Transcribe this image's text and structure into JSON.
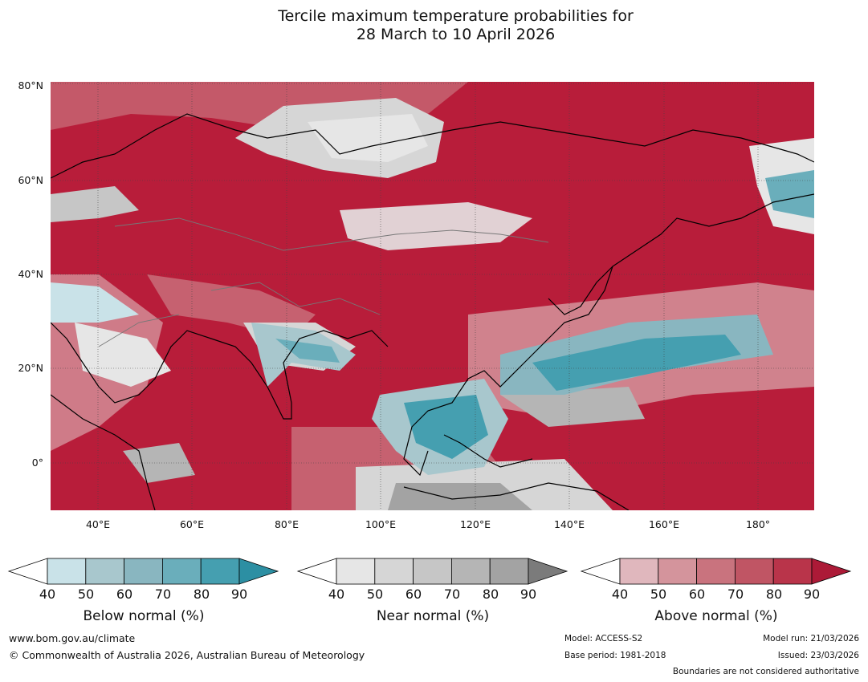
{
  "title": {
    "line1": "Tercile maximum temperature probabilities for",
    "line2": "28 March to 10 April 2026"
  },
  "map": {
    "lat_labels": [
      "80°N",
      "60°N",
      "40°N",
      "20°N",
      "0°"
    ],
    "lon_labels": [
      "40°E",
      "60°E",
      "80°E",
      "100°E",
      "120°E",
      "140°E",
      "160°E",
      "180°"
    ]
  },
  "colorbars": [
    {
      "title": "Below normal (%)",
      "ticks": [
        "40",
        "50",
        "60",
        "70",
        "80",
        "90"
      ],
      "colors": [
        "#ffffff",
        "#c9e2e8",
        "#a8c7cd",
        "#89b6c0",
        "#6aaebb",
        "#459fb0",
        "#2c8fa3"
      ]
    },
    {
      "title": "Near normal (%)",
      "ticks": [
        "40",
        "50",
        "60",
        "70",
        "80",
        "90"
      ],
      "colors": [
        "#ffffff",
        "#e6e6e6",
        "#d6d6d6",
        "#c6c6c6",
        "#b5b5b5",
        "#a3a3a3",
        "#7b7b7b"
      ]
    },
    {
      "title": "Above normal (%)",
      "ticks": [
        "40",
        "50",
        "60",
        "70",
        "80",
        "90"
      ],
      "colors": [
        "#ffffff",
        "#e0b7bd",
        "#d4949c",
        "#c9737e",
        "#c05564",
        "#b9344a",
        "#ac1a37"
      ]
    }
  ],
  "footer": {
    "website": "www.bom.gov.au/climate",
    "copyright": "© Commonwealth of Australia 2026, Australian Bureau of Meteorology",
    "model": "Model: ACCESS-S2",
    "base_period": "Base period: 1981-2018",
    "model_run": "Model run: 21/03/2026",
    "issued": "Issued: 23/03/2026",
    "disclaimer": "Boundaries are not considered authoritative"
  }
}
